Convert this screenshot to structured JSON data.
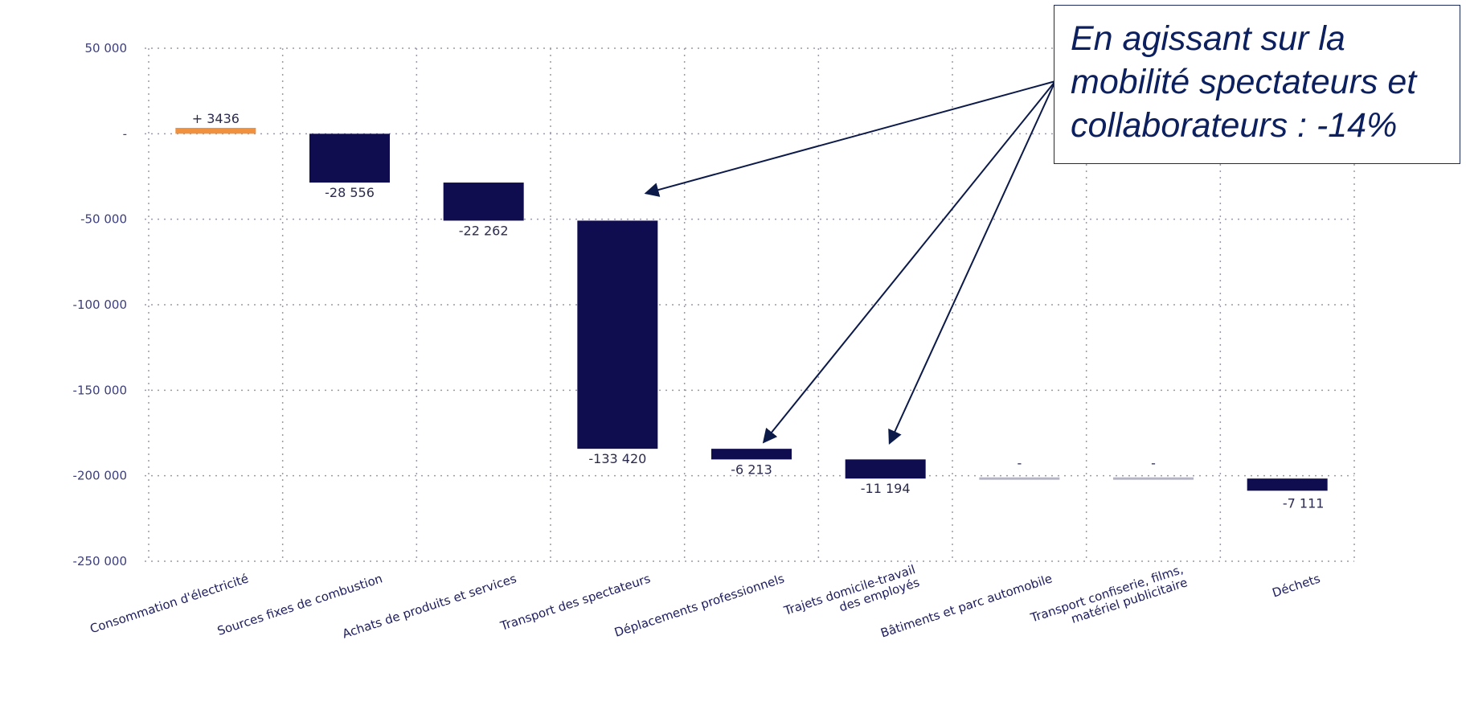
{
  "chart_data": {
    "type": "waterfall",
    "title": "",
    "xlabel": "",
    "ylabel": "",
    "ylim": [
      -250000,
      50000
    ],
    "y_ticks": [
      50000,
      0,
      -50000,
      -100000,
      -150000,
      -200000,
      -250000
    ],
    "y_tick_labels": [
      "50 000",
      "-",
      "-50 000",
      "-100 000",
      "-150 000",
      "-200 000",
      "-250 000"
    ],
    "grid": true,
    "categories": [
      [
        "Consommation d'électricité"
      ],
      [
        "Sources fixes de combustion"
      ],
      [
        "Achats de produits et services"
      ],
      [
        "Transport des spectateurs"
      ],
      [
        "Déplacements professionnels"
      ],
      [
        "Trajets domicile-travail",
        "des employés"
      ],
      [
        "Bâtiments et parc automobile"
      ],
      [
        "Transport confiserie, films,",
        "matériel publicitaire"
      ],
      [
        "Déchets"
      ]
    ],
    "values": [
      3436,
      -28556,
      -22262,
      -133420,
      -6213,
      -11194,
      0,
      0,
      -7111
    ],
    "starts": [
      0,
      0,
      -28556,
      -50818,
      -184238,
      -190451,
      -201645,
      -201645,
      -201645
    ],
    "value_labels": [
      "+ 3436",
      "-28 556",
      "-22 262",
      "-133 420",
      "-6 213",
      "-11 194",
      "-",
      "-",
      "-7 111"
    ],
    "bar_colors": [
      "#f0913f",
      "#0f0c4f",
      "#0f0c4f",
      "#0f0c4f",
      "#0f0c4f",
      "#0f0c4f",
      "#b4b4c4",
      "#b4b4c4",
      "#0f0c4f"
    ],
    "label_colors": [
      "#f0913f",
      "#2b2b4e",
      "#2b2b4e",
      "#2b2b4e",
      "#2b2b4e",
      "#2b2b4e",
      "#2b2b4e",
      "#2b2b4e",
      "#2b2b4e"
    ]
  },
  "callout": {
    "lines": [
      "En agissant sur la",
      "mobilité spectateurs et",
      "collaborateurs : -14%"
    ],
    "arrow_targets": [
      3,
      4,
      5
    ]
  }
}
